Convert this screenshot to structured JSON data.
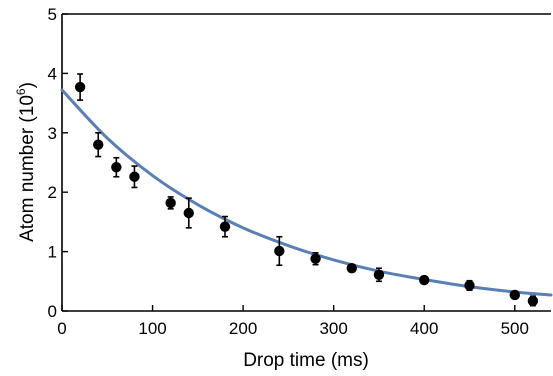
{
  "chart_data": {
    "type": "scatter",
    "xlabel": "Drop time (ms)",
    "ylabel_main": "Atom number (10",
    "ylabel_exp": "6",
    "ylabel_close": ")",
    "xlim": [
      0,
      540
    ],
    "ylim": [
      0,
      5
    ],
    "xticks": [
      0,
      100,
      200,
      300,
      400,
      500
    ],
    "yticks": [
      0,
      1,
      2,
      3,
      4,
      5
    ],
    "grid": false,
    "series": [
      {
        "kind": "points-with-error",
        "x": [
          20,
          40,
          60,
          80,
          120,
          140,
          180,
          240,
          280,
          320,
          350,
          400,
          450,
          500,
          520
        ],
        "y": [
          3.77,
          2.8,
          2.42,
          2.26,
          1.82,
          1.65,
          1.42,
          1.01,
          0.88,
          0.72,
          0.61,
          0.52,
          0.43,
          0.27,
          0.17
        ],
        "err": [
          0.22,
          0.2,
          0.16,
          0.18,
          0.1,
          0.25,
          0.17,
          0.24,
          0.1,
          0.06,
          0.11,
          0.06,
          0.08,
          0.06,
          0.08
        ]
      },
      {
        "kind": "fit-line",
        "color": "#5a7fb5",
        "x": [
          0,
          50,
          100,
          150,
          200,
          250,
          300,
          350,
          400,
          450,
          500,
          540
        ],
        "y": [
          3.72,
          2.91,
          2.28,
          1.79,
          1.4,
          1.1,
          0.86,
          0.67,
          0.53,
          0.41,
          0.32,
          0.27
        ]
      }
    ]
  }
}
